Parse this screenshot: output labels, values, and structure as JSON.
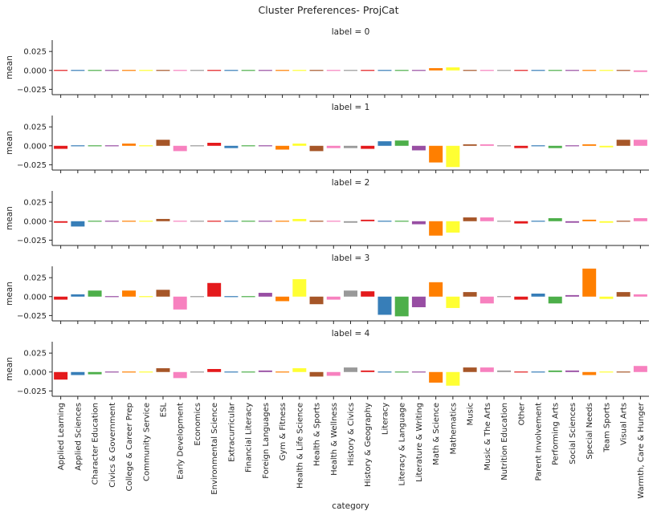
{
  "chart_data": {
    "type": "bar",
    "title": "Cluster Preferences- ProjCat",
    "xlabel": "category",
    "ylabel": "mean",
    "ylim": [
      -0.032,
      0.04
    ],
    "yticks": [
      -0.025,
      0.0,
      0.025
    ],
    "ytick_labels": [
      "−0.025",
      "0.000",
      "0.025"
    ],
    "grid": false,
    "categories": [
      "Applied Learning",
      "Applied Sciences",
      "Character Education",
      "Civics & Government",
      "College & Career Prep",
      "Community Service",
      "ESL",
      "Early Development",
      "Economics",
      "Environmental Science",
      "Extracurricular",
      "Financial Literacy",
      "Foreign Languages",
      "Gym & Fitness",
      "Health & Life Science",
      "Health & Sports",
      "Health & Wellness",
      "History & Civics",
      "History & Geography",
      "Literacy",
      "Literacy & Language",
      "Literature & Writing",
      "Math & Science",
      "Mathematics",
      "Music",
      "Music & The Arts",
      "Nutrition Education",
      "Other",
      "Parent Involvement",
      "Performing Arts",
      "Social Sciences",
      "Special Needs",
      "Team Sports",
      "Visual Arts",
      "Warmth, Care & Hunger"
    ],
    "colors": [
      "#e41a1c",
      "#377eb8",
      "#4daf4a",
      "#984ea3",
      "#ff7f00",
      "#ffff33",
      "#a65628",
      "#f781bf",
      "#999999",
      "#e41a1c",
      "#377eb8",
      "#4daf4a",
      "#984ea3",
      "#ff7f00",
      "#ffff33",
      "#a65628",
      "#f781bf",
      "#999999",
      "#e41a1c",
      "#377eb8",
      "#4daf4a",
      "#984ea3",
      "#ff7f00",
      "#ffff33",
      "#a65628",
      "#f781bf",
      "#999999",
      "#e41a1c",
      "#377eb8",
      "#4daf4a",
      "#984ea3",
      "#ff7f00",
      "#ffff33",
      "#a65628",
      "#f781bf"
    ],
    "panels": [
      {
        "title": "label = 0",
        "values": [
          0.001,
          0.001,
          0.0,
          0.0,
          0.0,
          0.0,
          0.0,
          0.001,
          0.0,
          -0.001,
          0.0,
          0.0,
          0.0,
          0.0,
          -0.001,
          0.001,
          0.0,
          0.0,
          -0.001,
          0.0,
          0.0,
          0.001,
          0.003,
          0.004,
          0.001,
          -0.001,
          0.0,
          0.0,
          0.0,
          0.0,
          0.0,
          0.0,
          0.0,
          -0.001,
          -0.002
        ]
      },
      {
        "title": "label = 1",
        "values": [
          -0.004,
          0.0,
          0.001,
          -0.001,
          0.003,
          0.001,
          0.008,
          -0.007,
          0.0,
          0.004,
          -0.003,
          0.001,
          0.001,
          -0.005,
          0.003,
          -0.007,
          -0.003,
          -0.003,
          -0.004,
          0.006,
          0.007,
          -0.006,
          -0.022,
          -0.028,
          0.002,
          0.002,
          -0.001,
          -0.003,
          0.0,
          -0.003,
          -0.001,
          0.002,
          -0.002,
          0.008,
          0.008
        ]
      },
      {
        "title": "label = 2",
        "values": [
          -0.002,
          -0.007,
          0.0,
          0.0,
          -0.001,
          0.0,
          0.003,
          -0.001,
          0.0,
          0.001,
          0.001,
          0.0,
          0.001,
          0.001,
          0.003,
          -0.001,
          -0.001,
          -0.002,
          0.002,
          0.001,
          0.001,
          -0.004,
          -0.019,
          -0.015,
          0.005,
          0.005,
          0.001,
          -0.003,
          0.0,
          0.004,
          -0.002,
          0.002,
          -0.002,
          0.0,
          0.004
        ]
      },
      {
        "title": "label = 3",
        "values": [
          -0.004,
          0.003,
          0.008,
          -0.001,
          0.008,
          0.001,
          0.009,
          -0.017,
          0.0,
          0.018,
          0.0,
          -0.001,
          0.005,
          -0.006,
          0.023,
          -0.01,
          -0.004,
          0.008,
          0.007,
          -0.024,
          -0.026,
          -0.014,
          0.019,
          -0.015,
          0.006,
          -0.009,
          0.001,
          -0.004,
          0.004,
          -0.009,
          0.002,
          0.037,
          -0.003,
          0.006,
          0.003
        ]
      },
      {
        "title": "label = 4",
        "values": [
          -0.01,
          -0.004,
          -0.003,
          0.001,
          0.0,
          0.0,
          0.005,
          -0.008,
          0.001,
          0.004,
          -0.001,
          0.001,
          0.002,
          -0.001,
          0.005,
          -0.006,
          -0.005,
          0.006,
          0.002,
          0.0,
          -0.001,
          -0.001,
          -0.014,
          -0.018,
          0.006,
          0.006,
          0.002,
          -0.001,
          -0.001,
          0.002,
          0.002,
          -0.004,
          -0.001,
          0.001,
          0.008
        ]
      }
    ]
  }
}
